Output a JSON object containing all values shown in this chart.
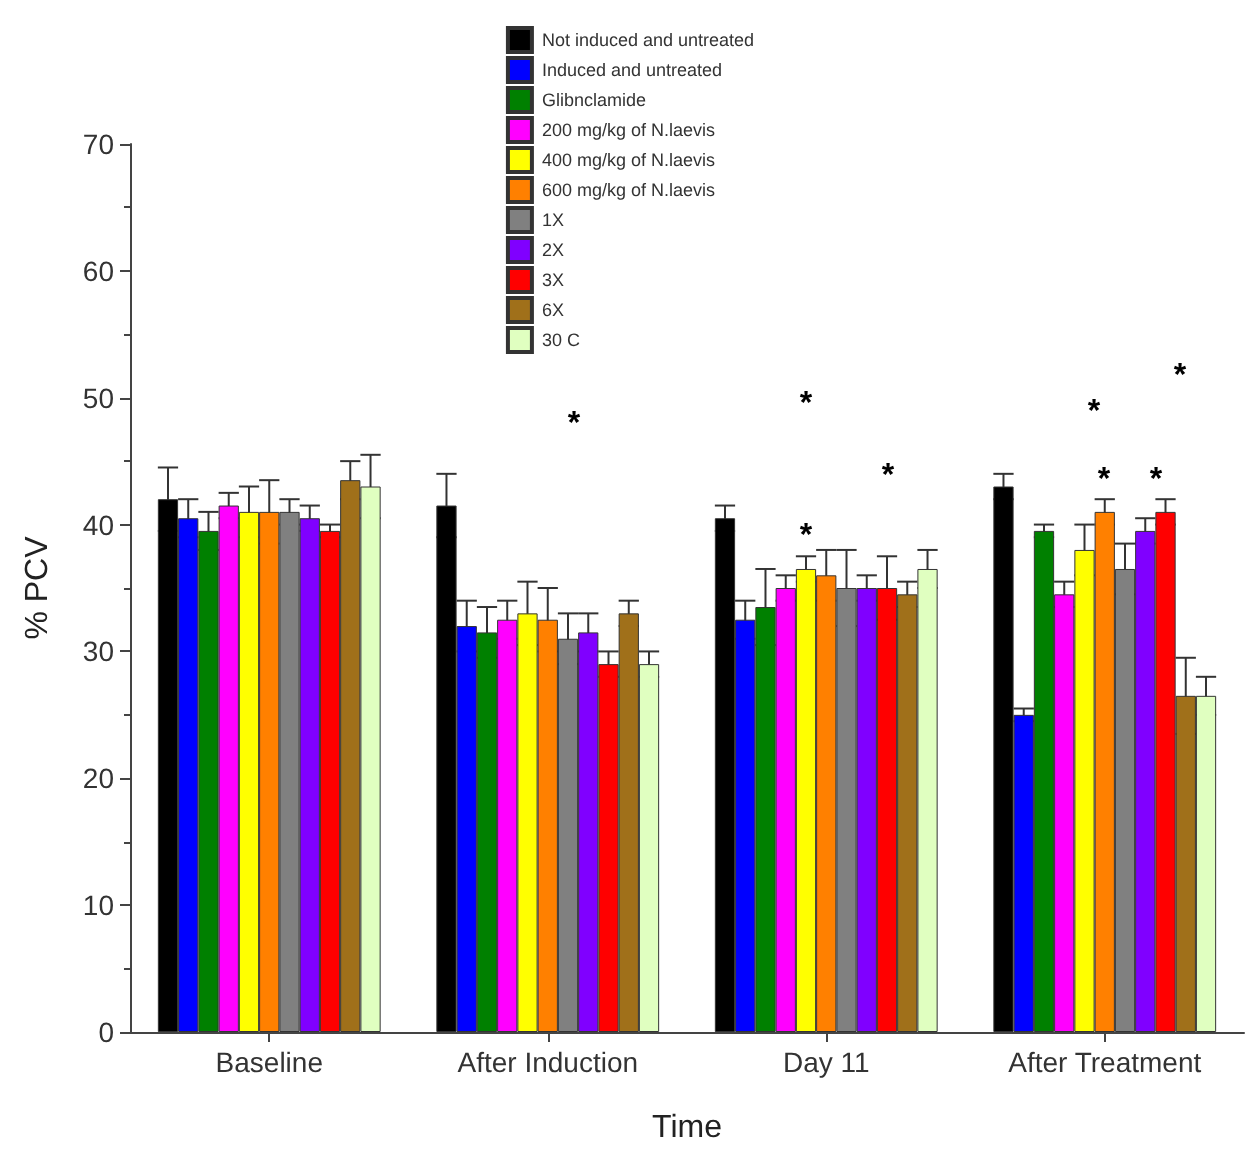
{
  "chart_data": {
    "type": "bar",
    "xlabel": "Time",
    "ylabel": "% PCV",
    "categories": [
      "Baseline",
      "After Induction",
      "Day 11",
      "After Treatment"
    ],
    "ylim": [
      0,
      70
    ],
    "yticks": [
      0,
      10,
      20,
      30,
      40,
      50,
      60,
      70
    ],
    "grid": false,
    "legend": "top",
    "series": [
      {
        "name": "Not induced and untreated",
        "color": "#000000",
        "values": [
          42,
          41.5,
          40.5,
          43
        ],
        "errors": [
          2.5,
          2.5,
          1,
          1
        ]
      },
      {
        "name": "Induced and untreated",
        "color": "#0000ff",
        "values": [
          40.5,
          32,
          32.5,
          25
        ],
        "errors": [
          1.5,
          2,
          1.5,
          0.5
        ]
      },
      {
        "name": "Glibnclamide",
        "color": "#008000",
        "values": [
          39.5,
          31.5,
          33.5,
          39.5
        ],
        "errors": [
          1.5,
          2,
          3,
          0.5
        ]
      },
      {
        "name": "200 mg/kg of N.laevis",
        "color": "#ff00ff",
        "values": [
          41.5,
          32.5,
          35,
          34.5
        ],
        "errors": [
          1,
          1.5,
          1,
          1
        ]
      },
      {
        "name": "400 mg/kg of N.laevis",
        "color": "#ffff00",
        "values": [
          41,
          33,
          36.5,
          38
        ],
        "errors": [
          2,
          2.5,
          1,
          2
        ]
      },
      {
        "name": "600 mg/kg of N.laevis",
        "color": "#ff8000",
        "values": [
          41,
          32.5,
          36,
          41
        ],
        "errors": [
          2.5,
          2.5,
          2,
          1
        ]
      },
      {
        "name": "1X",
        "color": "#808080",
        "values": [
          41,
          31,
          35,
          36.5
        ],
        "errors": [
          1,
          2,
          3,
          2
        ]
      },
      {
        "name": "2X",
        "color": "#8000ff",
        "values": [
          40.5,
          31.5,
          35,
          39.5
        ],
        "errors": [
          1,
          1.5,
          1,
          1
        ]
      },
      {
        "name": "3X",
        "color": "#ff0000",
        "values": [
          39.5,
          29,
          35,
          41
        ],
        "errors": [
          0.5,
          1,
          2.5,
          1
        ]
      },
      {
        "name": "6X",
        "color": "#a0701a",
        "values": [
          43.5,
          33,
          34.5,
          26.5
        ],
        "errors": [
          1.5,
          1,
          1,
          3
        ]
      },
      {
        "name": "30 C",
        "color": "#e0ffc0",
        "values": [
          43,
          29,
          36.5,
          26.5
        ],
        "errors": [
          2.5,
          1,
          1.5,
          1.5
        ]
      }
    ],
    "annotations": [
      "*",
      "*",
      "*",
      "*",
      "*",
      "*",
      "*",
      "*"
    ]
  }
}
